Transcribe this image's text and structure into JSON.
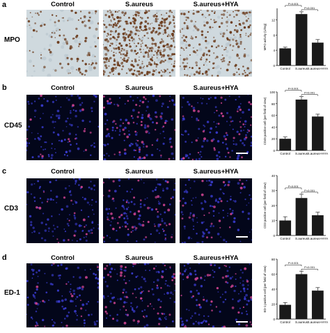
{
  "columns": [
    "Control",
    "S.aureus",
    "S.aureus+HYA"
  ],
  "panels": [
    {
      "letter": "a",
      "row_label": "MPO",
      "type": "ihc"
    },
    {
      "letter": "b",
      "row_label": "CD45",
      "type": "fluo"
    },
    {
      "letter": "c",
      "row_label": "CD3",
      "type": "fluo"
    },
    {
      "letter": "d",
      "row_label": "ED-1",
      "type": "fluo"
    }
  ],
  "pvalue_label": "P<0.001",
  "chart_data": [
    {
      "type": "bar",
      "categories": [
        "Control",
        "S.aureus",
        "S.aureus+HYA"
      ],
      "values": [
        4.5,
        13.5,
        6
      ],
      "errors": [
        0.3,
        0.6,
        0.8
      ],
      "ylabel": "MPO activity (U/mg)",
      "ylim": [
        0,
        15
      ],
      "yticks": [
        0,
        4,
        8,
        12
      ],
      "annotations": [
        "P<0.001",
        "P<0.001"
      ]
    },
    {
      "type": "bar",
      "categories": [
        "Control",
        "S.aureus",
        "S.aureus+HYA"
      ],
      "values": [
        20,
        87,
        58
      ],
      "errors": [
        3,
        5,
        4
      ],
      "ylabel": "CD45 positive cell (per field of view)",
      "ylim": [
        0,
        100
      ],
      "yticks": [
        0,
        20,
        40,
        60,
        80,
        100
      ],
      "annotations": [
        "P<0.001",
        "P<0.001"
      ]
    },
    {
      "type": "bar",
      "categories": [
        "Control",
        "S.aureus",
        "S.aureus+HYA"
      ],
      "values": [
        10,
        25,
        13.5
      ],
      "errors": [
        2.5,
        2.5,
        2
      ],
      "ylabel": "CD3 positive cell (per field of view)",
      "ylim": [
        0,
        40
      ],
      "yticks": [
        0,
        10,
        20,
        30,
        40
      ],
      "annotations": [
        "P<0.001",
        "P<0.001"
      ]
    },
    {
      "type": "bar",
      "categories": [
        "Control",
        "S.aureus",
        "S.aureus+HYA"
      ],
      "values": [
        19,
        60,
        38
      ],
      "errors": [
        3,
        4,
        4
      ],
      "ylabel": "ED-1 positive cell (per field of view)",
      "ylim": [
        0,
        80
      ],
      "yticks": [
        0,
        20,
        40,
        60,
        80
      ],
      "annotations": [
        "P<0.001",
        "P<0.001"
      ]
    }
  ],
  "colors": {
    "bar": "#1a1a1a",
    "ihc_bg": "#cfd9de",
    "ihc_stain": "#6b3b1c",
    "fluo_bg": "#03061a",
    "nuclei": "#3a3ccf",
    "positive": "#c2408a"
  }
}
